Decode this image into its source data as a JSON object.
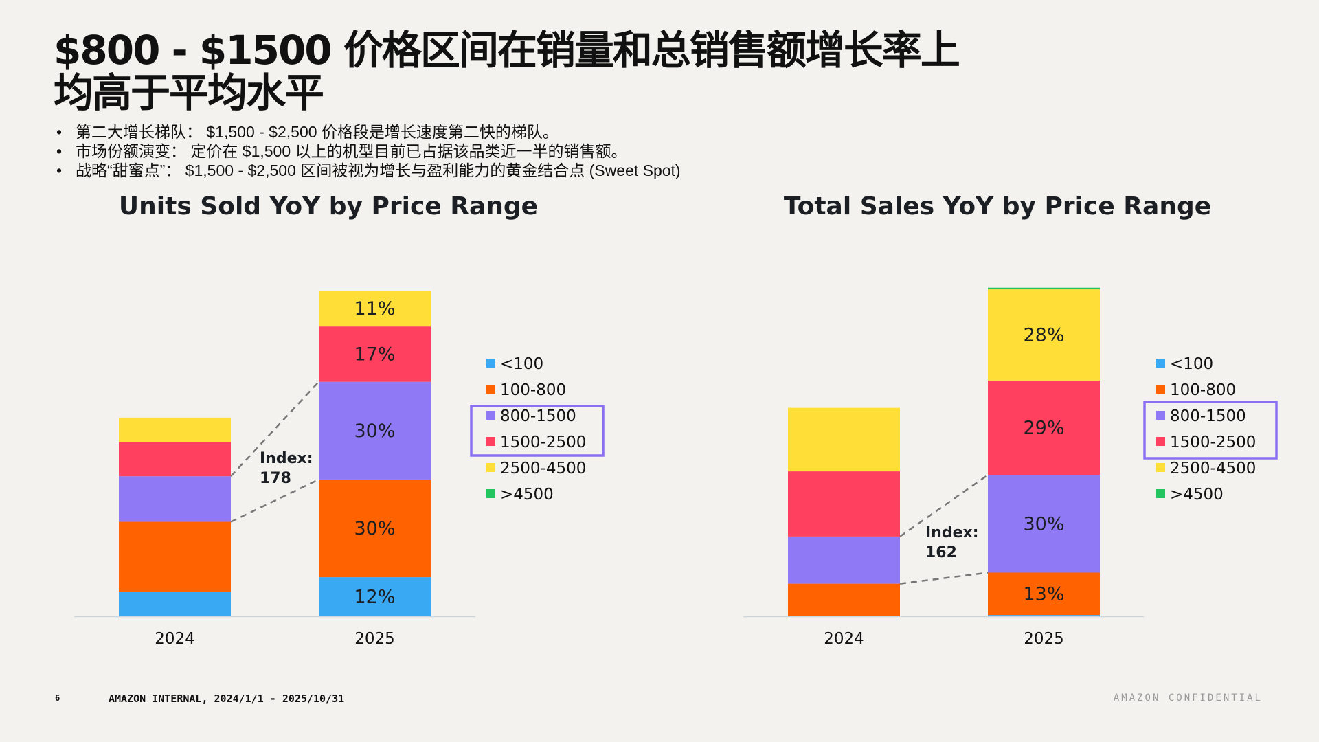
{
  "title": {
    "line1": "$800 - $1500 价格区间在销量和总销售额增长率上",
    "line2": "均高于平均水平"
  },
  "bullets": [
    "第二大增长梯队： $1,500 - $2,500 价格段是增长速度第二快的梯队。",
    "市场份额演变： 定价在 $1,500 以上的机型目前已占据该品类近一半的销售额。",
    "战略“甜蜜点”： $1,500 - $2,500 区间被视为增长与盈利能力的黄金结合点 (Sweet Spot)"
  ],
  "colors": {
    "<100": "#3aa9f4",
    "100-800": "#ff6200",
    "800-1500": "#9079f5",
    "1500-2500": "#ff405e",
    "2500-4500": "#ffdf37",
    ">4500": "#22c55e",
    "highlight_box": "#8a6ff0"
  },
  "legend_items": [
    "<100",
    "100-800",
    "800-1500",
    "1500-2500",
    "2500-4500",
    ">4500"
  ],
  "highlighted_legend": [
    "800-1500",
    "1500-2500"
  ],
  "chart_data": [
    {
      "type": "bar",
      "stacked": true,
      "title": "Units Sold YoY by Price Range",
      "categories": [
        "2024",
        "2025"
      ],
      "series": [
        {
          "name": "<100",
          "values": [
            7.5,
            12
          ]
        },
        {
          "name": "100-800",
          "values": [
            21.5,
            30
          ]
        },
        {
          "name": "800-1500",
          "values": [
            14,
            30
          ]
        },
        {
          "name": "1500-2500",
          "values": [
            10.5,
            17
          ]
        },
        {
          "name": "2500-4500",
          "values": [
            7.5,
            11
          ]
        },
        {
          "name": ">4500",
          "values": [
            0,
            0
          ]
        }
      ],
      "data_labels": [
        {
          "series": "<100",
          "category": "2025",
          "text": "12%"
        },
        {
          "series": "100-800",
          "category": "2025",
          "text": "30%"
        },
        {
          "series": "800-1500",
          "category": "2025",
          "text": "30%"
        },
        {
          "series": "1500-2500",
          "category": "2025",
          "text": "17%"
        },
        {
          "series": "2500-4500",
          "category": "2025",
          "text": "11%"
        }
      ],
      "annotation": {
        "label": "Index:",
        "value": "178",
        "series": "800-1500"
      },
      "legend_position": "right",
      "ymax": 100
    },
    {
      "type": "bar",
      "stacked": true,
      "title": "Total Sales YoY by Price Range",
      "categories": [
        "2024",
        "2025"
      ],
      "series": [
        {
          "name": "<100",
          "values": [
            0,
            0.4
          ]
        },
        {
          "name": "100-800",
          "values": [
            10,
            13
          ]
        },
        {
          "name": "800-1500",
          "values": [
            14.5,
            30
          ]
        },
        {
          "name": "1500-2500",
          "values": [
            20,
            29
          ]
        },
        {
          "name": "2500-4500",
          "values": [
            19.5,
            28
          ]
        },
        {
          "name": ">4500",
          "values": [
            0,
            0.5
          ]
        }
      ],
      "data_labels": [
        {
          "series": "100-800",
          "category": "2025",
          "text": "13%"
        },
        {
          "series": "800-1500",
          "category": "2025",
          "text": "30%"
        },
        {
          "series": "1500-2500",
          "category": "2025",
          "text": "29%"
        },
        {
          "series": "2500-4500",
          "category": "2025",
          "text": "28%"
        }
      ],
      "annotation": {
        "label": "Index:",
        "value": "162",
        "series": "800-1500"
      },
      "legend_position": "right",
      "ymax": 100
    }
  ],
  "footer": {
    "page": "6",
    "left": "AMAZON INTERNAL, 2024/1/1 - 2025/10/31",
    "right": "AMAZON CONFIDENTIAL"
  }
}
